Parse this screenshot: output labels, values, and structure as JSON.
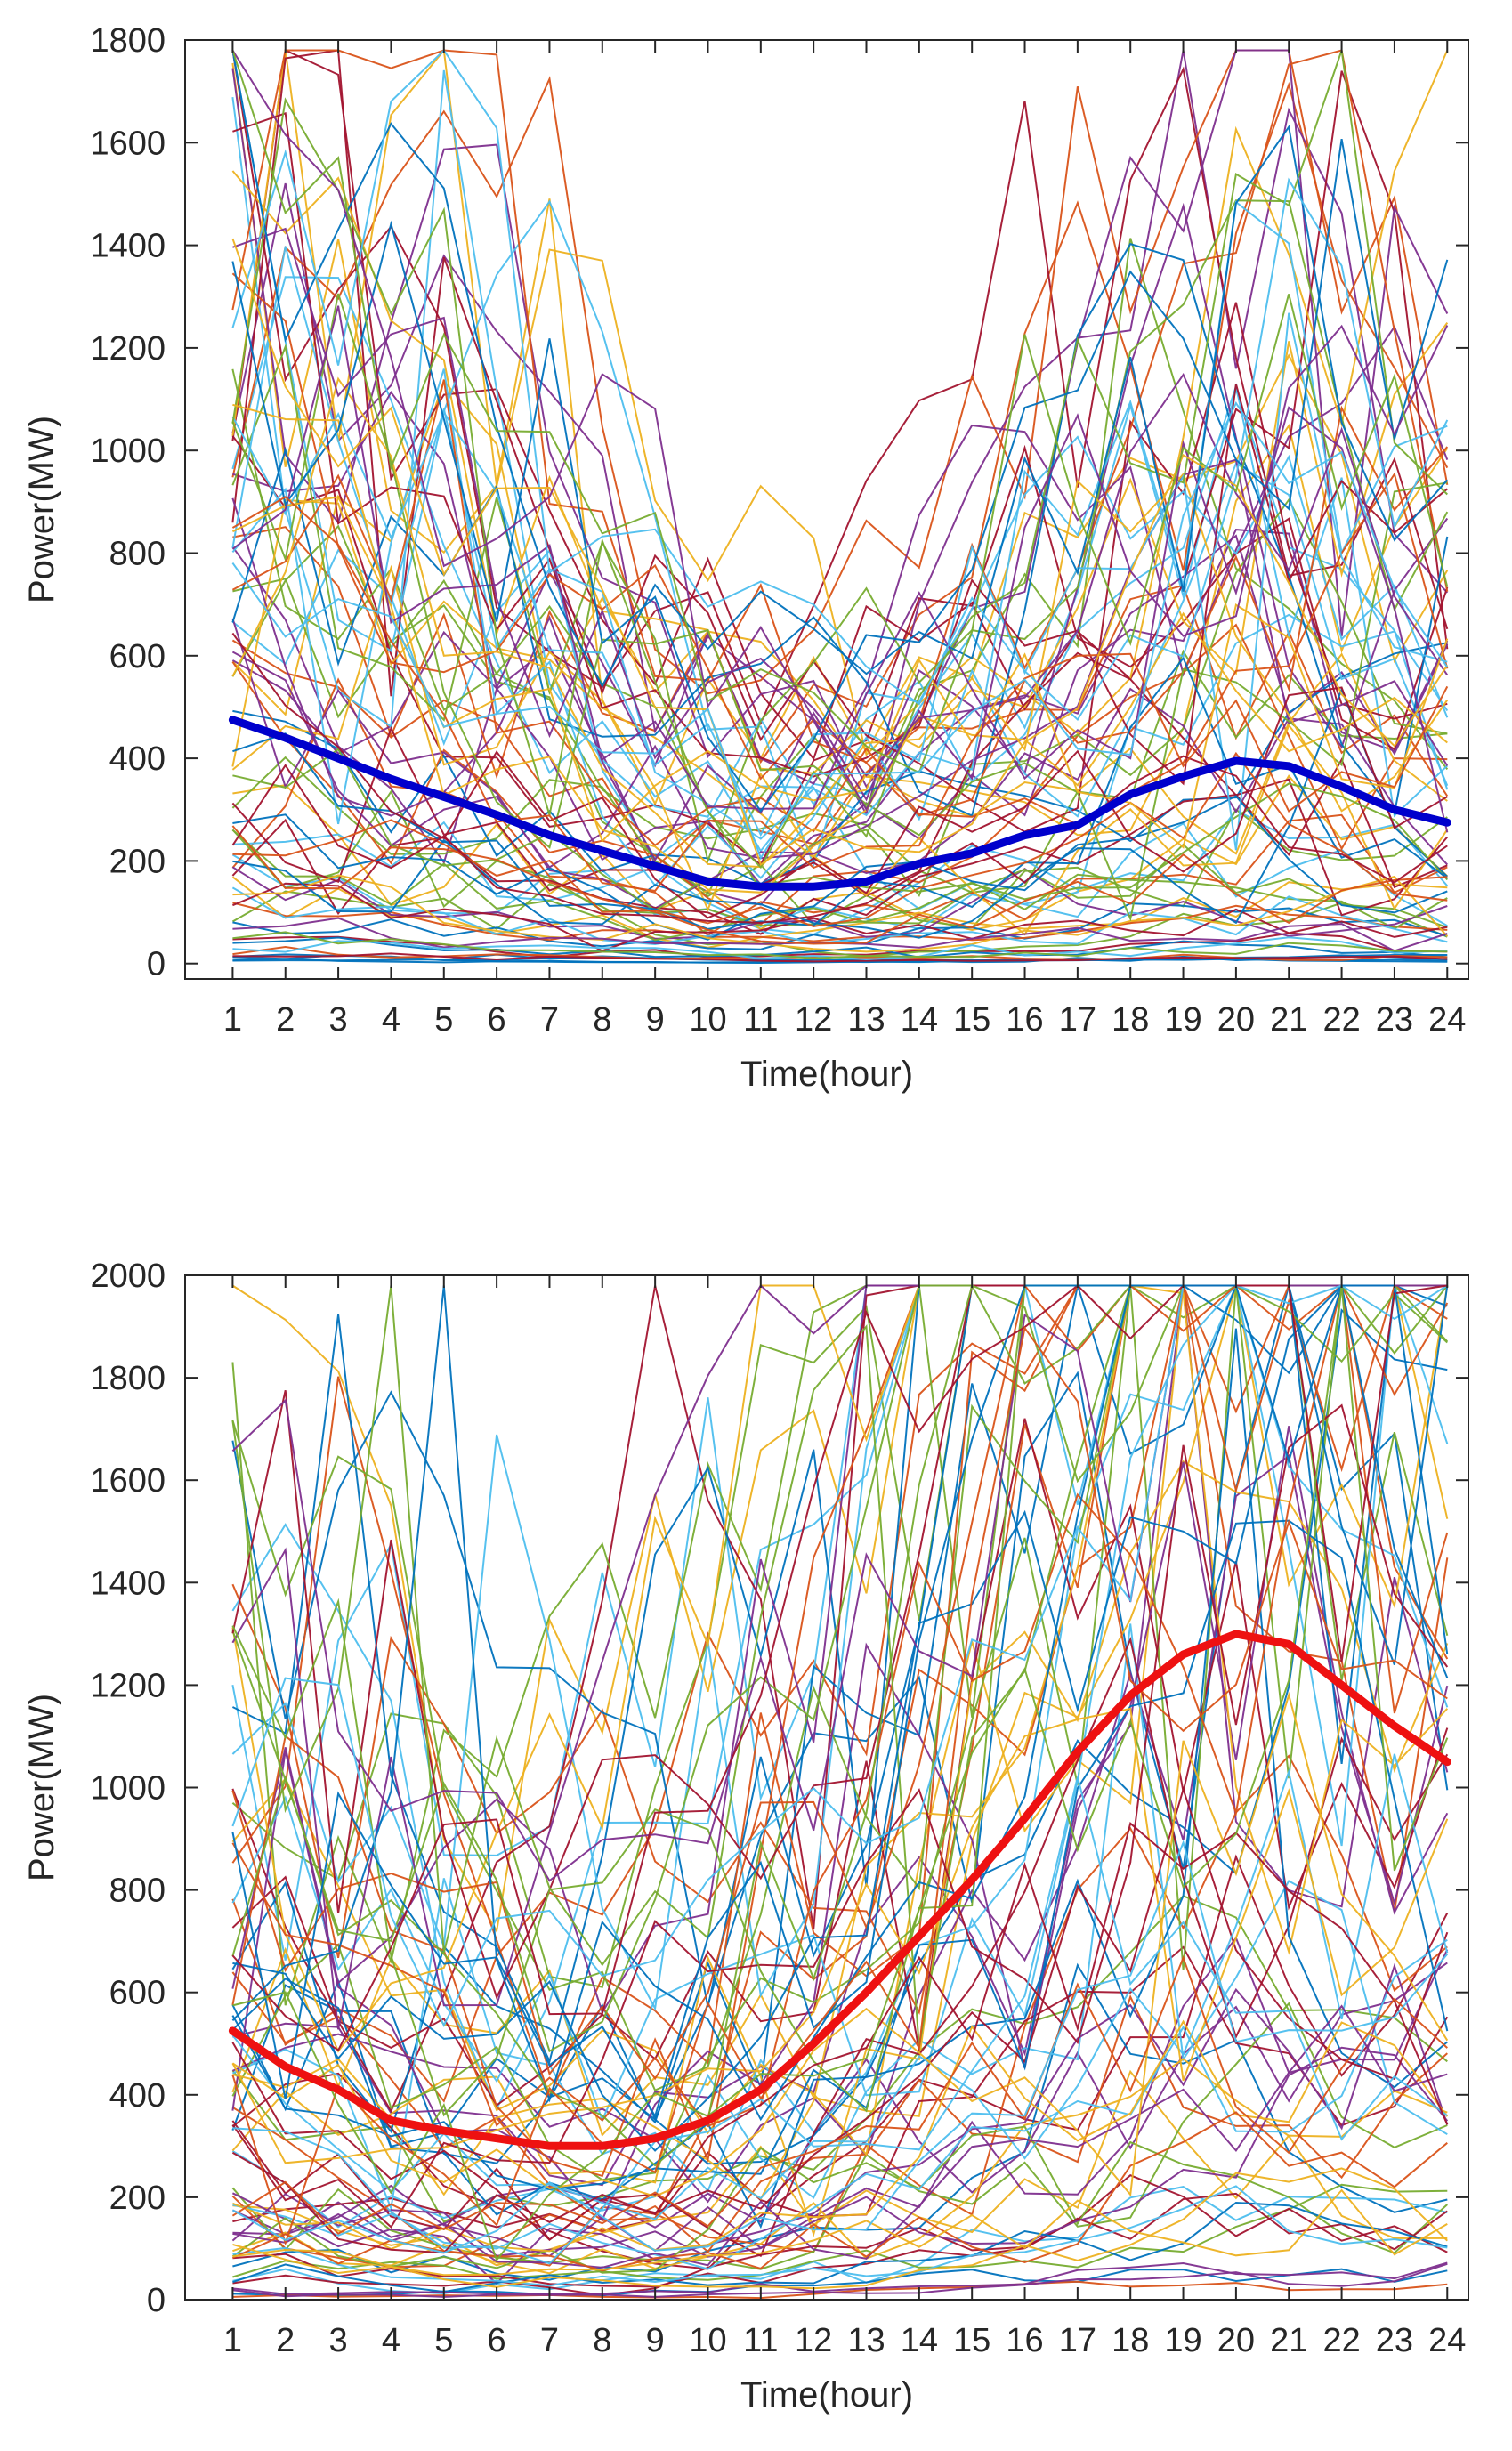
{
  "chart_data": [
    {
      "type": "line",
      "title": "",
      "xlabel": "Time(hour)",
      "ylabel": "Power(MW)",
      "x": [
        1,
        2,
        3,
        4,
        5,
        6,
        7,
        8,
        9,
        10,
        11,
        12,
        13,
        14,
        15,
        16,
        17,
        18,
        19,
        20,
        21,
        22,
        23,
        24
      ],
      "xlim": [
        0.1,
        24.4
      ],
      "ylim": [
        -30,
        1800
      ],
      "yticks": [
        0,
        200,
        400,
        600,
        800,
        1000,
        1200,
        1400,
        1600,
        1800
      ],
      "grid": false,
      "background_series_count": 90,
      "background_style": "thin multicolor daily power profiles (default line color order)",
      "series": [
        {
          "name": "mean",
          "color": "#0000cc",
          "values": [
            475,
            440,
            400,
            360,
            325,
            290,
            250,
            220,
            190,
            160,
            150,
            150,
            160,
            195,
            215,
            250,
            270,
            330,
            365,
            395,
            385,
            345,
            300,
            275
          ]
        }
      ]
    },
    {
      "type": "line",
      "title": "",
      "xlabel": "Time(hour)",
      "ylabel": "Power(MW)",
      "x": [
        1,
        2,
        3,
        4,
        5,
        6,
        7,
        8,
        9,
        10,
        11,
        12,
        13,
        14,
        15,
        16,
        17,
        18,
        19,
        20,
        21,
        22,
        23,
        24
      ],
      "xlim": [
        0.1,
        24.4
      ],
      "ylim": [
        0,
        2000
      ],
      "yticks": [
        0,
        200,
        400,
        600,
        800,
        1000,
        1200,
        1400,
        1600,
        1800,
        2000
      ],
      "grid": false,
      "background_series_count": 90,
      "background_style": "thin multicolor daily power profiles (default line color order)",
      "series": [
        {
          "name": "mean",
          "color": "#ee1111",
          "values": [
            525,
            455,
            410,
            350,
            330,
            315,
            300,
            300,
            315,
            350,
            410,
            500,
            600,
            710,
            820,
            940,
            1070,
            1180,
            1260,
            1300,
            1280,
            1200,
            1120,
            1050
          ]
        }
      ]
    }
  ],
  "palette": [
    "#0072bd",
    "#d95319",
    "#edb120",
    "#7e2f8e",
    "#77ac30",
    "#4dbeee",
    "#a2142f"
  ]
}
